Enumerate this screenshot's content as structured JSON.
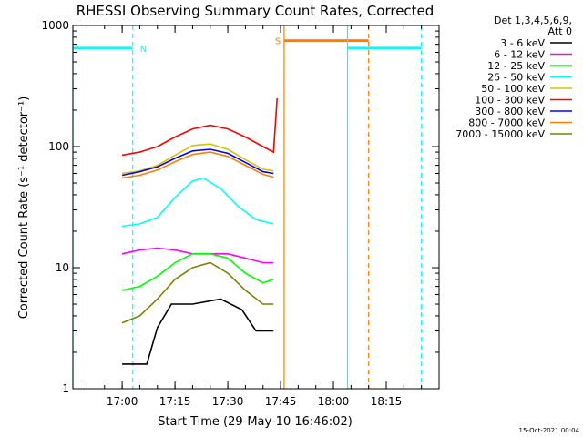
{
  "chart_data": {
    "type": "line",
    "title": "RHESSI Observing Summary Count Rates, Corrected",
    "xlabel": "Start Time (29-May-10 16:46:02)",
    "ylabel": "Corrected Count Rate (s⁻¹ detector⁻¹)",
    "yscale": "log",
    "ylim": [
      1,
      1000
    ],
    "xlim": [
      "16:46",
      "18:30"
    ],
    "x_ticks": [
      "17:00",
      "17:15",
      "17:30",
      "17:45",
      "18:00",
      "18:15"
    ],
    "y_ticks": [
      "1",
      "10",
      "100",
      "1000"
    ],
    "legend_header": [
      "Det 1,3,4,5,6,9,",
      "Att 0"
    ],
    "legend_position": "right",
    "series": [
      {
        "name": "3 - 6 keV",
        "color": "#000000",
        "x": [
          "17:00",
          "17:07",
          "17:10",
          "17:14",
          "17:20",
          "17:28",
          "17:34",
          "17:38",
          "17:43"
        ],
        "y": [
          1.6,
          1.6,
          3.2,
          5,
          5,
          5.5,
          4.5,
          3,
          3
        ]
      },
      {
        "name": "6 - 12 keV",
        "color": "#ff00ff",
        "x": [
          "17:00",
          "17:05",
          "17:10",
          "17:15",
          "17:20",
          "17:25",
          "17:30",
          "17:35",
          "17:40",
          "17:43"
        ],
        "y": [
          13,
          14,
          14.5,
          14,
          13,
          13,
          13,
          12,
          11,
          11
        ]
      },
      {
        "name": "12 - 25 keV",
        "color": "#00ff00",
        "x": [
          "17:00",
          "17:05",
          "17:10",
          "17:15",
          "17:20",
          "17:25",
          "17:30",
          "17:35",
          "17:40",
          "17:43"
        ],
        "y": [
          6.5,
          7,
          8.5,
          11,
          13,
          13,
          12,
          9,
          7.5,
          8
        ]
      },
      {
        "name": "25 - 50 keV",
        "color": "#00ffff",
        "x": [
          "17:00",
          "17:05",
          "17:10",
          "17:15",
          "17:20",
          "17:23",
          "17:28",
          "17:33",
          "17:38",
          "17:43"
        ],
        "y": [
          22,
          23,
          26,
          38,
          52,
          55,
          45,
          32,
          25,
          23
        ]
      },
      {
        "name": "50 - 100 keV",
        "color": "#d4c400",
        "x": [
          "17:00",
          "17:05",
          "17:10",
          "17:15",
          "17:20",
          "17:25",
          "17:30",
          "17:35",
          "17:40",
          "17:43"
        ],
        "y": [
          60,
          63,
          70,
          85,
          102,
          105,
          95,
          78,
          65,
          63
        ]
      },
      {
        "name": "100 - 300 keV",
        "color": "#ff0000",
        "x": [
          "17:00",
          "17:05",
          "17:10",
          "17:15",
          "17:20",
          "17:25",
          "17:30",
          "17:35",
          "17:40",
          "17:43",
          "17:44"
        ],
        "y": [
          85,
          90,
          100,
          120,
          140,
          150,
          140,
          120,
          100,
          90,
          250
        ]
      },
      {
        "name": "300 - 800 keV",
        "color": "#0000ff",
        "x": [
          "17:00",
          "17:05",
          "17:10",
          "17:15",
          "17:20",
          "17:25",
          "17:30",
          "17:35",
          "17:40",
          "17:43"
        ],
        "y": [
          58,
          62,
          68,
          80,
          92,
          95,
          88,
          74,
          62,
          60
        ]
      },
      {
        "name": "800 - 7000 keV",
        "color": "#ff8000",
        "x": [
          "17:00",
          "17:05",
          "17:10",
          "17:15",
          "17:20",
          "17:25",
          "17:30",
          "17:35",
          "17:40",
          "17:43"
        ],
        "y": [
          55,
          58,
          64,
          75,
          86,
          90,
          83,
          70,
          59,
          56
        ]
      },
      {
        "name": "7000 - 15000 keV",
        "color": "#808000",
        "x": [
          "17:00",
          "17:05",
          "17:10",
          "17:15",
          "17:20",
          "17:25",
          "17:30",
          "17:35",
          "17:40",
          "17:43"
        ],
        "y": [
          3.5,
          4,
          5.5,
          8,
          10,
          11,
          9,
          6.5,
          5,
          5
        ]
      }
    ],
    "annotations": [
      {
        "label": "N",
        "color": "#00ffff",
        "flag_x": [
          "16:46",
          "17:03"
        ],
        "flag_y": 650,
        "vlines": [
          {
            "x": "16:46",
            "style": "solid"
          },
          {
            "x": "17:03",
            "style": "dashed"
          }
        ]
      },
      {
        "label": "S",
        "color": "#ff8000",
        "flag_x": [
          "17:46",
          "18:10"
        ],
        "flag_y": 750,
        "vlines": [
          {
            "x": "17:46",
            "style": "solid"
          },
          {
            "x": "18:10",
            "style": "dashed"
          }
        ]
      },
      {
        "label": "",
        "color": "#00ffff",
        "flag_x": [
          "18:04",
          "18:25"
        ],
        "flag_y": 650,
        "vlines": [
          {
            "x": "18:04",
            "style": "solid"
          },
          {
            "x": "18:25",
            "style": "dashed"
          }
        ]
      }
    ]
  },
  "footer": {
    "timestamp": "15-Oct-2021 00:04"
  }
}
